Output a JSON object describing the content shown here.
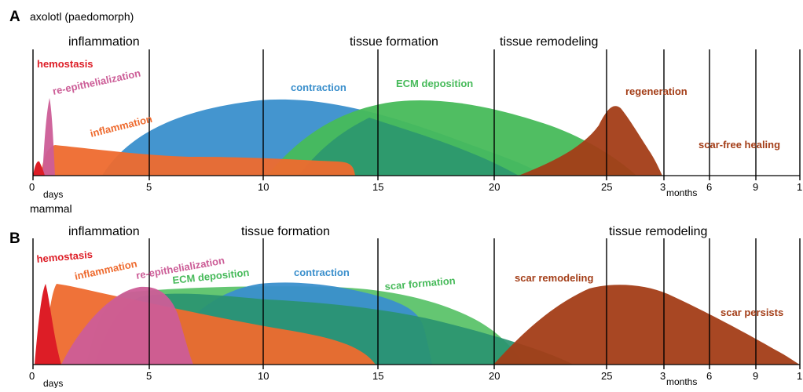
{
  "panel_a": {
    "letter": "A",
    "organism": "axolotl (paedomorph)",
    "phases": {
      "inflammation": "inflammation",
      "tissue_formation": "tissue formation",
      "tissue_remodeling": "tissue remodeling"
    },
    "processes": {
      "hemostasis": "hemostasis",
      "reepithelialization": "re-epithelialization",
      "inflammation": "inflammation",
      "contraction": "contraction",
      "ecm": "ECM deposition",
      "regeneration": "regeneration",
      "scarfree": "scar-free healing"
    },
    "ticks": {
      "d0": "0",
      "d5": "5",
      "d10": "10",
      "d15": "15",
      "d20": "20",
      "d25": "25",
      "m3": "3",
      "m6": "6",
      "m9": "9",
      "m12": "1"
    },
    "unit_days": "days",
    "unit_months": "months"
  },
  "panel_b": {
    "letter": "B",
    "organism": "mammal",
    "phases": {
      "inflammation": "inflammation",
      "tissue_formation": "tissue formation",
      "tissue_remodeling": "tissue remodeling"
    },
    "processes": {
      "hemostasis": "hemostasis",
      "inflammation": "inflammation",
      "reepithelialization": "re-epithelialization",
      "ecm": "ECM deposition",
      "contraction": "contraction",
      "scar_formation": "scar formation",
      "scar_remodeling": "scar remodeling",
      "scar_persists": "scar persists"
    },
    "ticks": {
      "d0": "0",
      "d5": "5",
      "d10": "10",
      "d15": "15",
      "d20": "20",
      "d25": "25",
      "m3": "3",
      "m6": "6",
      "m9": "9",
      "m12": "1"
    },
    "unit_days": "days",
    "unit_months": "months"
  },
  "colors": {
    "hemostasis": "#dd1d26",
    "reepithelialization": "#cc5d97",
    "inflammation": "#ee6a2e",
    "contraction": "#3a8fcc",
    "ecm": "#47ba5a",
    "scar_formation": "#5cc36a",
    "regeneration": "#a33d17",
    "scar": "#a33d17"
  }
}
